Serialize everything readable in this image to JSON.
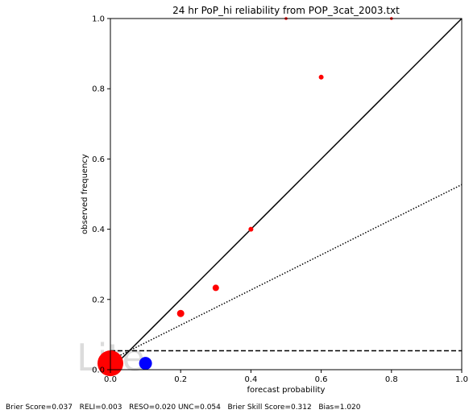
{
  "chart_data": {
    "type": "scatter",
    "title": "24 hr PoP_hi reliability from POP_3cat_2003.txt",
    "xlabel": "forecast probability",
    "ylabel": "observed frequency",
    "xlim": [
      0,
      1
    ],
    "ylim": [
      0,
      1
    ],
    "xticks": [
      "0.0",
      "0.2",
      "0.4",
      "0.6",
      "0.8",
      "1.0"
    ],
    "yticks": [
      "0.0",
      "0.2",
      "0.4",
      "0.6",
      "0.8",
      "1.0"
    ],
    "grid": false,
    "watermark": "Lite",
    "series": [
      {
        "color": "#ff0000",
        "points": [
          {
            "x": 0.0,
            "y": 0.018,
            "size": "xlarge"
          },
          {
            "x": 0.2,
            "y": 0.16,
            "size": "medium"
          },
          {
            "x": 0.3,
            "y": 0.233,
            "size": "small"
          },
          {
            "x": 0.4,
            "y": 0.4,
            "size": "tiny"
          },
          {
            "x": 0.5,
            "y": 1.0,
            "size": "micro"
          },
          {
            "x": 0.6,
            "y": 0.833,
            "size": "tiny"
          },
          {
            "x": 0.8,
            "y": 1.0,
            "size": "micro"
          }
        ]
      },
      {
        "color": "#0000ff",
        "points": [
          {
            "x": 0.1,
            "y": 0.018,
            "size": "large"
          }
        ]
      }
    ],
    "reference_lines": {
      "perfect_reliability": {
        "style": "solid",
        "color": "#000000",
        "from": [
          0,
          0
        ],
        "to": [
          1,
          1
        ]
      },
      "no_skill": {
        "style": "dotted",
        "color": "#000000",
        "from": [
          0,
          0.027
        ],
        "to": [
          1,
          0.527
        ]
      },
      "climatology": {
        "style": "dashed",
        "color": "#000000",
        "y": 0.054
      }
    }
  },
  "footer": {
    "text": "Brier Score=0.037   RELI=0.003   RESO=0.020 UNC=0.054   Brier Skill Score=0.312   Bias=1.020"
  }
}
